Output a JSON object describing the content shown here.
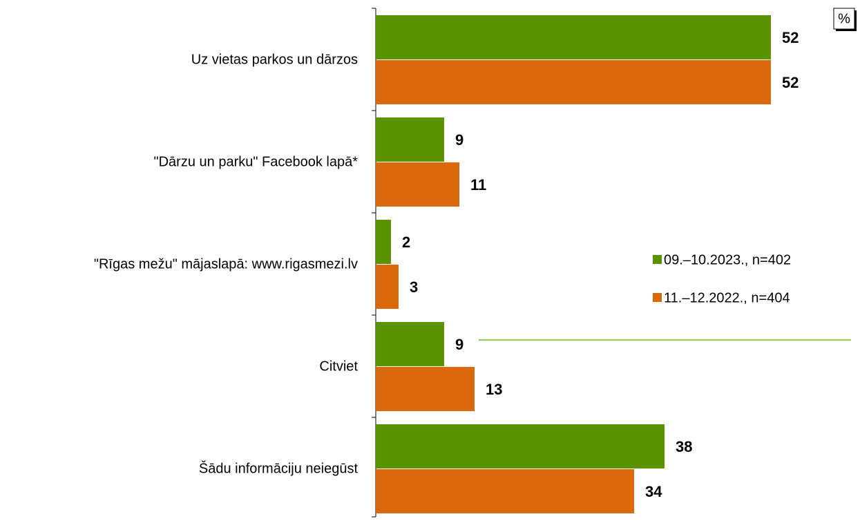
{
  "chart_data": {
    "type": "bar",
    "orientation": "horizontal",
    "unit": "%",
    "categories": [
      "Uz vietas parkos un dārzos",
      "\"Dārzu un parku\" Facebook lapā*",
      "\"Rīgas mežu\" mājaslapā: www.rigasmezi.lv",
      "Citviet",
      "Šādu informāciju neiegūst"
    ],
    "series": [
      {
        "name": "09.–10.2023., n=402",
        "color": "#5a9200",
        "values": [
          52,
          9,
          2,
          9,
          38
        ]
      },
      {
        "name": "11.–12.2022., n=404",
        "color": "#d9690a",
        "values": [
          52,
          11,
          3,
          13,
          34
        ]
      }
    ],
    "legend": "right"
  }
}
